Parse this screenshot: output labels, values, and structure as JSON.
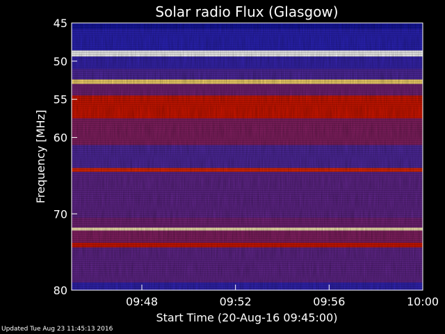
{
  "chart_data": {
    "type": "heatmap",
    "title": "Solar radio Flux (Glasgow)",
    "xlabel": "Start Time (20-Aug-16 09:45:00)",
    "ylabel": "Frequency [MHz]",
    "xlim": [
      "09:45",
      "10:00"
    ],
    "ylim": [
      45,
      80
    ],
    "x_ticks": [
      "09:48",
      "09:52",
      "09:56",
      "10:00"
    ],
    "y_ticks": [
      45,
      50,
      55,
      60,
      70,
      80
    ],
    "colormap": [
      "#000060",
      "#2020c0",
      "#4a2aa8",
      "#8a1f60",
      "#c00000",
      "#ff4000",
      "#ffc000",
      "#ffffff"
    ],
    "bands": [
      {
        "from": 45.0,
        "to": 45.8,
        "level": 0.1
      },
      {
        "from": 45.8,
        "to": 48.6,
        "level": 0.18
      },
      {
        "from": 48.6,
        "to": 49.4,
        "level": 1.0
      },
      {
        "from": 49.4,
        "to": 51.0,
        "level": 0.22
      },
      {
        "from": 51.0,
        "to": 52.4,
        "level": 0.3
      },
      {
        "from": 52.4,
        "to": 53.0,
        "level": 0.92
      },
      {
        "from": 53.0,
        "to": 54.5,
        "level": 0.38
      },
      {
        "from": 54.5,
        "to": 57.5,
        "level": 0.62
      },
      {
        "from": 57.5,
        "to": 61.0,
        "level": 0.42
      },
      {
        "from": 61.0,
        "to": 64.0,
        "level": 0.3
      },
      {
        "from": 64.0,
        "to": 64.5,
        "level": 0.66
      },
      {
        "from": 64.5,
        "to": 70.5,
        "level": 0.34
      },
      {
        "from": 70.5,
        "to": 71.8,
        "level": 0.38
      },
      {
        "from": 71.8,
        "to": 72.2,
        "level": 0.96
      },
      {
        "from": 72.2,
        "to": 73.8,
        "level": 0.42
      },
      {
        "from": 73.8,
        "to": 74.4,
        "level": 0.62
      },
      {
        "from": 74.4,
        "to": 79.0,
        "level": 0.34
      },
      {
        "from": 79.0,
        "to": 80.0,
        "level": 0.2
      }
    ]
  },
  "footer": {
    "updated": "Updated Tue Aug 23 11:45:13 2016"
  }
}
